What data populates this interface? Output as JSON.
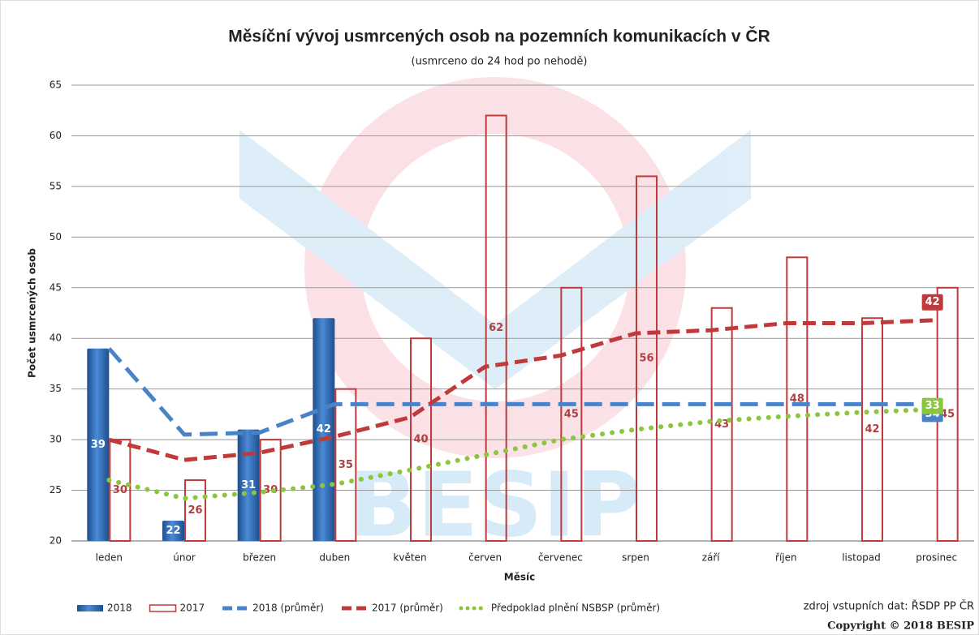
{
  "chart_data": {
    "type": "bar",
    "title": "Měsíční vývoj usmrcených osob na pozemních komunikacích v ČR",
    "subtitle": "(usmrceno do 24 hod po nehodě)",
    "watermark": "BESIP",
    "x_label": "Měsíc",
    "y_label": "Počet usmrcených osob",
    "categories": [
      "leden",
      "únor",
      "březen",
      "duben",
      "květen",
      "červen",
      "červenec",
      "srpen",
      "září",
      "říjen",
      "listopad",
      "prosinec"
    ],
    "series": [
      {
        "name": "2018",
        "kind": "bar",
        "color": "#2f6db5",
        "values": [
          39,
          22,
          31,
          42,
          null,
          null,
          null,
          null,
          null,
          null,
          null,
          null
        ]
      },
      {
        "name": "2017",
        "kind": "bar",
        "color": "#c0393b",
        "values": [
          30,
          26,
          30,
          35,
          40,
          62,
          45,
          56,
          43,
          48,
          42,
          45
        ]
      },
      {
        "name": "2018 (průměr)",
        "kind": "line",
        "color": "#4a82c8",
        "dash": "22 10",
        "values": [
          39,
          30.5,
          30.7,
          33.5,
          33.5,
          33.5,
          33.5,
          33.5,
          33.5,
          33.5,
          33.5,
          33.5
        ],
        "value_labels": [
          null,
          null,
          null,
          null,
          null,
          null,
          null,
          null,
          null,
          null,
          null,
          "34"
        ]
      },
      {
        "name": "2017 (průměr)",
        "kind": "line",
        "color": "#c0393b",
        "dash": "16 8",
        "values": [
          30,
          28,
          28.7,
          30.3,
          32.2,
          37.2,
          38.3,
          40.5,
          40.8,
          41.5,
          41.5,
          41.8
        ],
        "value_labels": [
          null,
          null,
          null,
          null,
          null,
          null,
          null,
          null,
          null,
          null,
          null,
          "42"
        ]
      },
      {
        "name": "Předpoklad plnění NSBSP (průměr)",
        "kind": "line",
        "color": "#8cc63f",
        "dash": "0.1 12",
        "values": [
          26,
          24.2,
          24.8,
          25.6,
          27,
          28.5,
          30,
          31,
          31.8,
          32.3,
          32.7,
          33
        ],
        "value_labels": [
          null,
          null,
          null,
          null,
          null,
          null,
          null,
          null,
          null,
          null,
          null,
          "33"
        ]
      }
    ],
    "ylim": [
      20,
      65
    ],
    "yticks": [
      20,
      25,
      30,
      35,
      40,
      45,
      50,
      55,
      60,
      65
    ],
    "grid": true,
    "legend": "bottom",
    "source": "zdroj vstupních dat: ŘSDP PP ČR",
    "copyright": "Copyright © 2018 BESIP"
  }
}
